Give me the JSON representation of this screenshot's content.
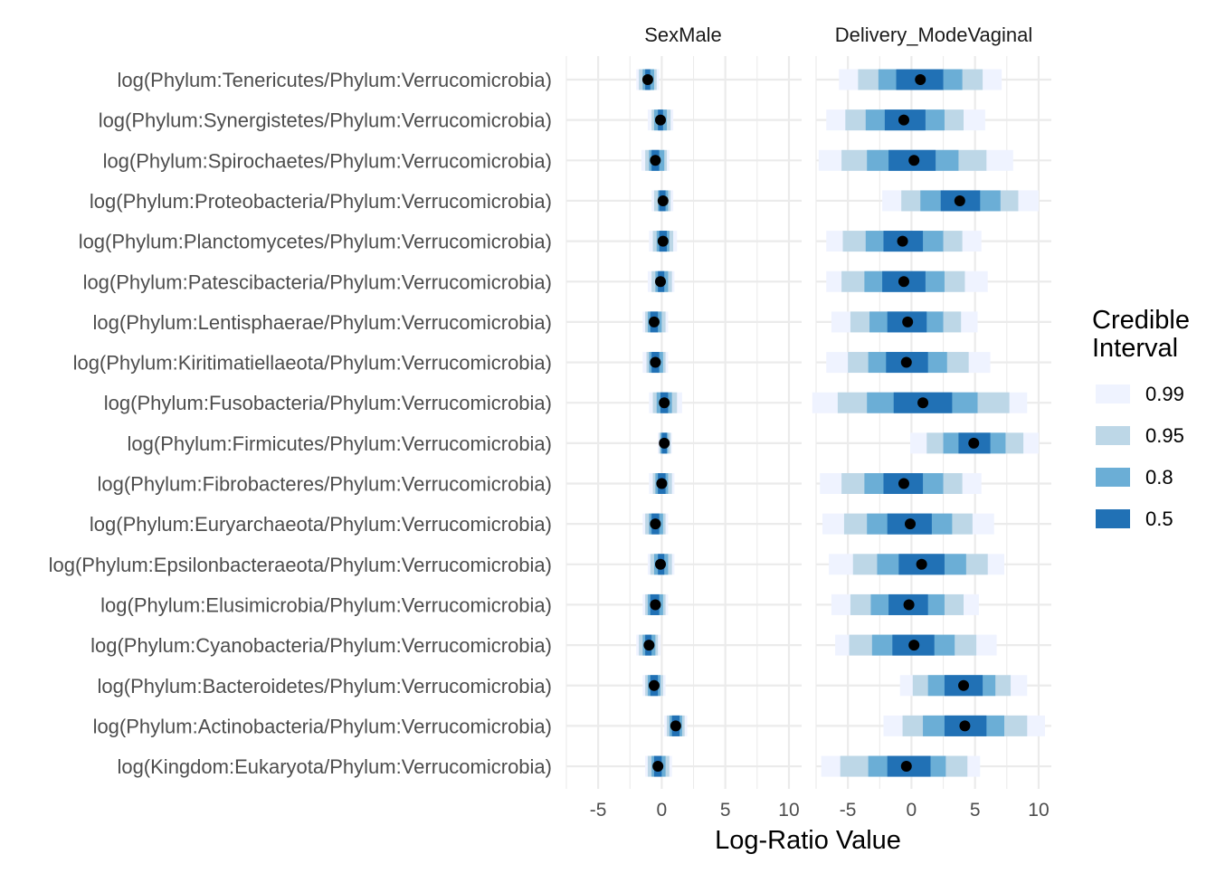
{
  "chart_data": {
    "type": "interval",
    "xlabel": "Log-Ratio Value",
    "xlim": [
      -7.5,
      11
    ],
    "xticks": [
      -5,
      0,
      5,
      10
    ],
    "tick_labels": [
      "-5",
      "0",
      "5",
      "10"
    ],
    "grid": true,
    "legend_title": [
      "Credible",
      "Interval"
    ],
    "legend_position": "right",
    "interval_levels": [
      {
        "label": "0.99",
        "color": "#EFF3FF"
      },
      {
        "label": "0.95",
        "color": "#BDD7E7"
      },
      {
        "label": "0.8",
        "color": "#6BAED6"
      },
      {
        "label": "0.5",
        "color": "#2171B5"
      }
    ],
    "point_color": "#000000",
    "categories": [
      "log(Phylum:Tenericutes/Phylum:Verrucomicrobia)",
      "log(Phylum:Synergistetes/Phylum:Verrucomicrobia)",
      "log(Phylum:Spirochaetes/Phylum:Verrucomicrobia)",
      "log(Phylum:Proteobacteria/Phylum:Verrucomicrobia)",
      "log(Phylum:Planctomycetes/Phylum:Verrucomicrobia)",
      "log(Phylum:Patescibacteria/Phylum:Verrucomicrobia)",
      "log(Phylum:Lentisphaerae/Phylum:Verrucomicrobia)",
      "log(Phylum:Kiritimatiellaeota/Phylum:Verrucomicrobia)",
      "log(Phylum:Fusobacteria/Phylum:Verrucomicrobia)",
      "log(Phylum:Firmicutes/Phylum:Verrucomicrobia)",
      "log(Phylum:Fibrobacteres/Phylum:Verrucomicrobia)",
      "log(Phylum:Euryarchaeota/Phylum:Verrucomicrobia)",
      "log(Phylum:Epsilonbacteraeota/Phylum:Verrucomicrobia)",
      "log(Phylum:Elusimicrobia/Phylum:Verrucomicrobia)",
      "log(Phylum:Cyanobacteria/Phylum:Verrucomicrobia)",
      "log(Phylum:Bacteroidetes/Phylum:Verrucomicrobia)",
      "log(Phylum:Actinobacteria/Phylum:Verrucomicrobia)",
      "log(Kingdom:Eukaryota/Phylum:Verrucomicrobia)"
    ],
    "panels": [
      {
        "title": "SexMale",
        "rows": [
          {
            "median": -1.1,
            "i99": [
              -2.0,
              -0.2
            ],
            "i95": [
              -1.8,
              -0.4
            ],
            "i80": [
              -1.5,
              -0.6
            ],
            "i50": [
              -1.3,
              -0.9
            ]
          },
          {
            "median": -0.1,
            "i99": [
              -1.1,
              0.9
            ],
            "i95": [
              -0.8,
              0.7
            ],
            "i80": [
              -0.6,
              0.4
            ],
            "i50": [
              -0.3,
              0.1
            ]
          },
          {
            "median": -0.5,
            "i99": [
              -1.6,
              0.6
            ],
            "i95": [
              -1.3,
              0.4
            ],
            "i80": [
              -1.0,
              0.2
            ],
            "i50": [
              -0.8,
              -0.2
            ]
          },
          {
            "median": 0.1,
            "i99": [
              -0.8,
              0.9
            ],
            "i95": [
              -0.6,
              0.7
            ],
            "i80": [
              -0.3,
              0.5
            ],
            "i50": [
              -0.2,
              0.3
            ]
          },
          {
            "median": 0.1,
            "i99": [
              -1.0,
              1.2
            ],
            "i95": [
              -0.7,
              0.9
            ],
            "i80": [
              -0.4,
              0.6
            ],
            "i50": [
              -0.2,
              0.4
            ]
          },
          {
            "median": -0.1,
            "i99": [
              -1.1,
              1.0
            ],
            "i95": [
              -0.8,
              0.8
            ],
            "i80": [
              -0.5,
              0.5
            ],
            "i50": [
              -0.3,
              0.2
            ]
          },
          {
            "median": -0.6,
            "i99": [
              -1.5,
              0.5
            ],
            "i95": [
              -1.3,
              0.3
            ],
            "i80": [
              -1.1,
              0.0
            ],
            "i50": [
              -0.9,
              -0.3
            ]
          },
          {
            "median": -0.5,
            "i99": [
              -1.5,
              0.5
            ],
            "i95": [
              -1.2,
              0.3
            ],
            "i80": [
              -1.0,
              0.1
            ],
            "i50": [
              -0.8,
              -0.2
            ]
          },
          {
            "median": 0.2,
            "i99": [
              -1.0,
              1.6
            ],
            "i95": [
              -0.7,
              1.2
            ],
            "i80": [
              -0.4,
              0.8
            ],
            "i50": [
              -0.1,
              0.5
            ]
          },
          {
            "median": 0.2,
            "i99": [
              -0.3,
              0.8
            ],
            "i95": [
              -0.2,
              0.7
            ],
            "i80": [
              -0.1,
              0.5
            ],
            "i50": [
              0.0,
              0.4
            ]
          },
          {
            "median": 0.0,
            "i99": [
              -1.0,
              1.0
            ],
            "i95": [
              -0.7,
              0.8
            ],
            "i80": [
              -0.5,
              0.5
            ],
            "i50": [
              -0.3,
              0.3
            ]
          },
          {
            "median": -0.5,
            "i99": [
              -1.5,
              0.5
            ],
            "i95": [
              -1.3,
              0.3
            ],
            "i80": [
              -1.0,
              0.1
            ],
            "i50": [
              -0.8,
              -0.2
            ]
          },
          {
            "median": -0.1,
            "i99": [
              -1.1,
              1.0
            ],
            "i95": [
              -0.9,
              0.8
            ],
            "i80": [
              -0.6,
              0.5
            ],
            "i50": [
              -0.3,
              0.2
            ]
          },
          {
            "median": -0.5,
            "i99": [
              -1.5,
              0.5
            ],
            "i95": [
              -1.3,
              0.3
            ],
            "i80": [
              -1.1,
              0.1
            ],
            "i50": [
              -0.9,
              -0.2
            ]
          },
          {
            "median": -1.0,
            "i99": [
              -2.0,
              -0.1
            ],
            "i95": [
              -1.8,
              -0.3
            ],
            "i80": [
              -1.5,
              -0.5
            ],
            "i50": [
              -1.3,
              -0.8
            ]
          },
          {
            "median": -0.6,
            "i99": [
              -1.5,
              0.3
            ],
            "i95": [
              -1.3,
              0.1
            ],
            "i80": [
              -1.1,
              -0.1
            ],
            "i50": [
              -0.9,
              -0.3
            ]
          },
          {
            "median": 1.1,
            "i99": [
              0.2,
              2.0
            ],
            "i95": [
              0.4,
              1.8
            ],
            "i80": [
              0.6,
              1.6
            ],
            "i50": [
              0.8,
              1.4
            ]
          },
          {
            "median": -0.3,
            "i99": [
              -1.3,
              0.8
            ],
            "i95": [
              -1.1,
              0.6
            ],
            "i80": [
              -0.8,
              0.3
            ],
            "i50": [
              -0.6,
              0.0
            ]
          }
        ]
      },
      {
        "title": "Delivery_ModeVaginal",
        "rows": [
          {
            "median": 0.7,
            "i99": [
              -5.7,
              7.1
            ],
            "i95": [
              -4.2,
              5.6
            ],
            "i80": [
              -2.6,
              4.0
            ],
            "i50": [
              -1.2,
              2.5
            ]
          },
          {
            "median": -0.6,
            "i99": [
              -6.7,
              5.8
            ],
            "i95": [
              -5.2,
              4.1
            ],
            "i80": [
              -3.6,
              2.6
            ],
            "i50": [
              -2.1,
              1.1
            ]
          },
          {
            "median": 0.2,
            "i99": [
              -7.3,
              8.0
            ],
            "i95": [
              -5.5,
              5.9
            ],
            "i80": [
              -3.5,
              3.7
            ],
            "i50": [
              -1.8,
              1.9
            ]
          },
          {
            "median": 3.8,
            "i99": [
              -2.3,
              10.0
            ],
            "i95": [
              -0.8,
              8.4
            ],
            "i80": [
              0.7,
              7.0
            ],
            "i50": [
              2.3,
              5.4
            ]
          },
          {
            "median": -0.7,
            "i99": [
              -6.7,
              5.5
            ],
            "i95": [
              -5.4,
              4.0
            ],
            "i80": [
              -3.6,
              2.5
            ],
            "i50": [
              -2.2,
              0.9
            ]
          },
          {
            "median": -0.6,
            "i99": [
              -6.7,
              6.0
            ],
            "i95": [
              -5.5,
              4.2
            ],
            "i80": [
              -3.7,
              2.6
            ],
            "i50": [
              -2.3,
              1.1
            ]
          },
          {
            "median": -0.3,
            "i99": [
              -6.3,
              5.2
            ],
            "i95": [
              -4.8,
              3.9
            ],
            "i80": [
              -3.3,
              2.5
            ],
            "i50": [
              -1.9,
              1.2
            ]
          },
          {
            "median": -0.4,
            "i99": [
              -6.7,
              6.2
            ],
            "i95": [
              -5.0,
              4.5
            ],
            "i80": [
              -3.4,
              2.8
            ],
            "i50": [
              -2.0,
              1.3
            ]
          },
          {
            "median": 0.9,
            "i99": [
              -7.8,
              9.1
            ],
            "i95": [
              -5.8,
              7.7
            ],
            "i80": [
              -3.5,
              5.2
            ],
            "i50": [
              -1.4,
              3.2
            ]
          },
          {
            "median": 4.9,
            "i99": [
              -0.1,
              10.0
            ],
            "i95": [
              1.2,
              8.8
            ],
            "i80": [
              2.5,
              7.4
            ],
            "i50": [
              3.7,
              6.2
            ]
          },
          {
            "median": -0.6,
            "i99": [
              -7.2,
              5.5
            ],
            "i95": [
              -5.5,
              4.0
            ],
            "i80": [
              -3.7,
              2.5
            ],
            "i50": [
              -2.2,
              0.9
            ]
          },
          {
            "median": -0.1,
            "i99": [
              -7.0,
              6.5
            ],
            "i95": [
              -5.3,
              4.8
            ],
            "i80": [
              -3.5,
              3.2
            ],
            "i50": [
              -1.9,
              1.6
            ]
          },
          {
            "median": 0.8,
            "i99": [
              -6.5,
              7.3
            ],
            "i95": [
              -4.6,
              6.0
            ],
            "i80": [
              -2.7,
              4.3
            ],
            "i50": [
              -1.0,
              2.6
            ]
          },
          {
            "median": -0.2,
            "i99": [
              -6.3,
              5.3
            ],
            "i95": [
              -4.8,
              4.1
            ],
            "i80": [
              -3.2,
              2.6
            ],
            "i50": [
              -1.8,
              1.3
            ]
          },
          {
            "median": 0.2,
            "i99": [
              -6.0,
              6.7
            ],
            "i95": [
              -4.9,
              5.1
            ],
            "i80": [
              -3.1,
              3.4
            ],
            "i50": [
              -1.5,
              1.8
            ]
          },
          {
            "median": 4.1,
            "i99": [
              -0.9,
              9.1
            ],
            "i95": [
              0.1,
              7.8
            ],
            "i80": [
              1.3,
              6.6
            ],
            "i50": [
              2.6,
              5.6
            ]
          },
          {
            "median": 4.2,
            "i99": [
              -2.2,
              10.5
            ],
            "i95": [
              -0.7,
              9.1
            ],
            "i80": [
              0.9,
              7.3
            ],
            "i50": [
              2.6,
              5.9
            ]
          },
          {
            "median": -0.4,
            "i99": [
              -7.1,
              5.4
            ],
            "i95": [
              -5.6,
              4.4
            ],
            "i80": [
              -3.4,
              2.7
            ],
            "i50": [
              -1.9,
              1.5
            ]
          }
        ]
      }
    ]
  }
}
